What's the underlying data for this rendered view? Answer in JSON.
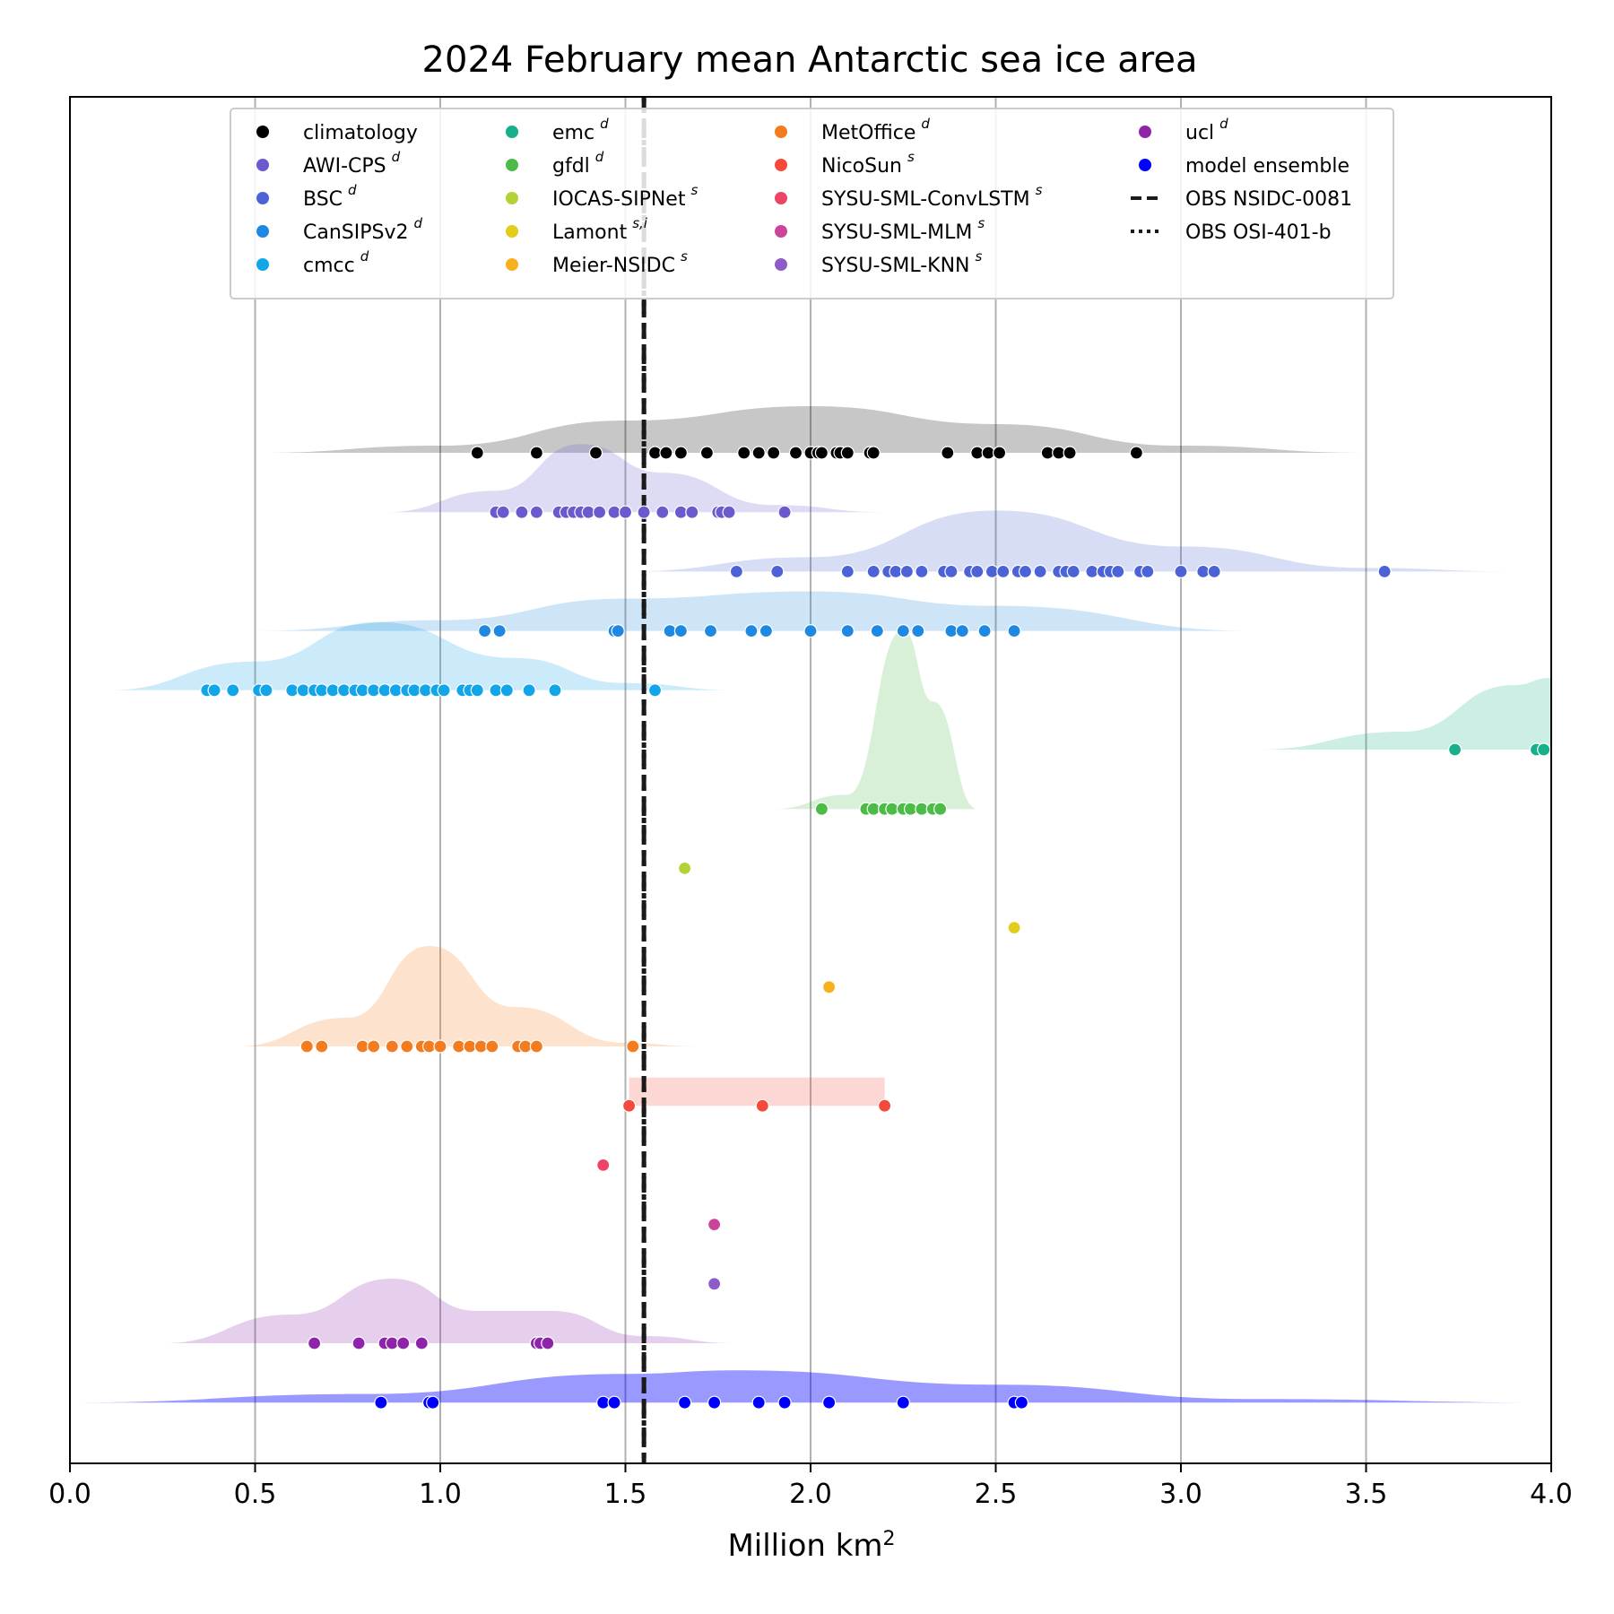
{
  "chart_data": {
    "type": "scatter",
    "title": "2024 February mean Antarctic sea ice area",
    "xlabel": "Million km",
    "xlabel_sup": "2",
    "ylabel": "",
    "xlim": [
      0.0,
      4.0
    ],
    "xticks": [
      "0.0",
      "0.5",
      "1.0",
      "1.5",
      "2.0",
      "2.5",
      "3.0",
      "3.5",
      "4.0"
    ],
    "grid": "vertical",
    "legend_position": "top",
    "series": [
      {
        "name": "climatology",
        "sup": "",
        "color": "#000000",
        "values": [
          1.1,
          1.26,
          1.42,
          1.58,
          1.61,
          1.65,
          1.72,
          1.82,
          1.86,
          1.9,
          1.96,
          2.0,
          2.02,
          2.03,
          2.07,
          2.08,
          2.1,
          2.16,
          2.17,
          2.37,
          2.45,
          2.48,
          2.51,
          2.64,
          2.67,
          2.7,
          2.88
        ],
        "kde": [
          [
            0.5,
            0.0
          ],
          [
            1.0,
            0.1
          ],
          [
            1.5,
            0.45
          ],
          [
            2.0,
            0.65
          ],
          [
            2.5,
            0.4
          ],
          [
            3.0,
            0.1
          ],
          [
            3.5,
            0.0
          ]
        ]
      },
      {
        "name": "AWI-CPS",
        "sup": "d",
        "color": "#6a5acd",
        "values": [
          1.15,
          1.17,
          1.22,
          1.26,
          1.32,
          1.34,
          1.36,
          1.38,
          1.4,
          1.43,
          1.47,
          1.5,
          1.55,
          1.6,
          1.65,
          1.68,
          1.75,
          1.76,
          1.78,
          1.93
        ],
        "kde": [
          [
            0.85,
            0.0
          ],
          [
            1.15,
            0.3
          ],
          [
            1.38,
            0.95
          ],
          [
            1.6,
            0.55
          ],
          [
            1.9,
            0.1
          ],
          [
            2.2,
            0.0
          ]
        ]
      },
      {
        "name": "BSC",
        "sup": "d",
        "color": "#4c63d8",
        "values": [
          1.8,
          1.91,
          2.1,
          2.17,
          2.21,
          2.23,
          2.26,
          2.3,
          2.36,
          2.38,
          2.43,
          2.45,
          2.49,
          2.52,
          2.56,
          2.58,
          2.62,
          2.67,
          2.69,
          2.71,
          2.76,
          2.79,
          2.81,
          2.83,
          2.89,
          2.91,
          3.0,
          3.06,
          3.09,
          3.55
        ],
        "kde": [
          [
            1.5,
            0.0
          ],
          [
            2.0,
            0.2
          ],
          [
            2.5,
            0.85
          ],
          [
            3.0,
            0.35
          ],
          [
            3.5,
            0.05
          ],
          [
            3.9,
            0.0
          ]
        ]
      },
      {
        "name": "CanSIPSv2",
        "sup": "d",
        "color": "#1f88e0",
        "values": [
          1.12,
          1.16,
          1.47,
          1.48,
          1.62,
          1.65,
          1.73,
          1.84,
          1.88,
          2.0,
          2.1,
          2.18,
          2.25,
          2.29,
          2.38,
          2.41,
          2.47,
          2.55
        ],
        "kde": [
          [
            0.5,
            0.0
          ],
          [
            1.0,
            0.15
          ],
          [
            1.5,
            0.45
          ],
          [
            2.0,
            0.55
          ],
          [
            2.5,
            0.35
          ],
          [
            3.2,
            0.0
          ]
        ]
      },
      {
        "name": "cmcc",
        "sup": "d",
        "color": "#12a5e8",
        "values": [
          0.37,
          0.39,
          0.44,
          0.51,
          0.53,
          0.6,
          0.63,
          0.66,
          0.68,
          0.71,
          0.74,
          0.77,
          0.79,
          0.82,
          0.85,
          0.88,
          0.91,
          0.93,
          0.96,
          0.99,
          1.01,
          1.06,
          1.08,
          1.1,
          1.15,
          1.18,
          1.24,
          1.31,
          1.58
        ],
        "kde": [
          [
            0.1,
            0.0
          ],
          [
            0.5,
            0.4
          ],
          [
            0.83,
            0.95
          ],
          [
            1.2,
            0.45
          ],
          [
            1.5,
            0.1
          ],
          [
            1.8,
            0.0
          ]
        ]
      },
      {
        "name": "emc",
        "sup": "d",
        "color": "#17b08a",
        "values": [
          3.74,
          3.96,
          3.98
        ],
        "kde": [
          [
            3.2,
            0.0
          ],
          [
            3.6,
            0.25
          ],
          [
            3.9,
            0.9
          ],
          [
            4.0,
            1.0
          ]
        ]
      },
      {
        "name": "gfdl",
        "sup": "d",
        "color": "#4cbb47",
        "values": [
          2.03,
          2.15,
          2.17,
          2.2,
          2.22,
          2.25,
          2.27,
          2.3,
          2.33,
          2.35
        ],
        "kde": [
          [
            1.9,
            0.0
          ],
          [
            2.1,
            0.2
          ],
          [
            2.25,
            2.5
          ],
          [
            2.33,
            1.5
          ],
          [
            2.45,
            0.0
          ]
        ]
      },
      {
        "name": "IOCAS-SIPNet",
        "sup": "s",
        "color": "#b2d235",
        "values": [
          1.66
        ],
        "kde": []
      },
      {
        "name": "Lamont",
        "sup": "s,i",
        "color": "#e3cc1a",
        "values": [
          2.55
        ],
        "kde": []
      },
      {
        "name": "Meier-NSIDC",
        "sup": "s",
        "color": "#f8b01d",
        "values": [
          2.05
        ],
        "kde": []
      },
      {
        "name": "MetOffice",
        "sup": "d",
        "color": "#f47c20",
        "values": [
          0.64,
          0.68,
          0.79,
          0.82,
          0.87,
          0.91,
          0.95,
          0.97,
          1.0,
          1.05,
          1.08,
          1.11,
          1.14,
          1.21,
          1.23,
          1.26,
          1.52
        ],
        "kde": [
          [
            0.45,
            0.0
          ],
          [
            0.75,
            0.4
          ],
          [
            0.97,
            1.4
          ],
          [
            1.2,
            0.55
          ],
          [
            1.5,
            0.05
          ],
          [
            1.7,
            0.0
          ]
        ]
      },
      {
        "name": "NicoSun",
        "sup": "s",
        "color": "#f44a3c",
        "values": [
          1.51,
          1.87,
          2.2
        ],
        "kde": [
          [
            1.51,
            0.0
          ],
          [
            1.51,
            0.45
          ],
          [
            2.2,
            0.45
          ],
          [
            2.2,
            0.0
          ]
        ]
      },
      {
        "name": "SYSU-SML-ConvLSTM",
        "sup": "s",
        "color": "#ee4466",
        "values": [
          1.44
        ],
        "kde": []
      },
      {
        "name": "SYSU-SML-MLM",
        "sup": "s",
        "color": "#cc4499",
        "values": [
          1.74
        ],
        "kde": []
      },
      {
        "name": "SYSU-SML-KNN",
        "sup": "s",
        "color": "#8e5cc8",
        "values": [
          1.74
        ],
        "kde": []
      },
      {
        "name": "ucl",
        "sup": "d",
        "color": "#8e24aa",
        "values": [
          0.66,
          0.78,
          0.85,
          0.87,
          0.9,
          0.95,
          1.26,
          1.27,
          1.29
        ],
        "kde": [
          [
            0.25,
            0.0
          ],
          [
            0.6,
            0.4
          ],
          [
            0.87,
            0.9
          ],
          [
            1.1,
            0.45
          ],
          [
            1.3,
            0.45
          ],
          [
            1.55,
            0.1
          ],
          [
            1.8,
            0.0
          ]
        ]
      },
      {
        "name": "model ensemble",
        "sup": "",
        "color": "#0000ff",
        "values": [
          0.84,
          0.97,
          0.98,
          1.44,
          1.47,
          1.66,
          1.74,
          1.86,
          1.93,
          2.05,
          2.25,
          2.55,
          2.57
        ],
        "kde": [
          [
            0.0,
            0.0
          ],
          [
            0.8,
            0.12
          ],
          [
            1.5,
            0.4
          ],
          [
            1.8,
            0.45
          ],
          [
            2.5,
            0.25
          ],
          [
            3.2,
            0.05
          ],
          [
            4.0,
            0.0
          ]
        ]
      }
    ],
    "obs_lines": [
      {
        "name": "OBS NSIDC-0081",
        "x": 1.55,
        "style": "dashed",
        "color": "#1a1a1a"
      },
      {
        "name": "OBS OSI-401-b",
        "x": 1.55,
        "style": "dotted",
        "color": "#1a1a1a"
      }
    ]
  }
}
